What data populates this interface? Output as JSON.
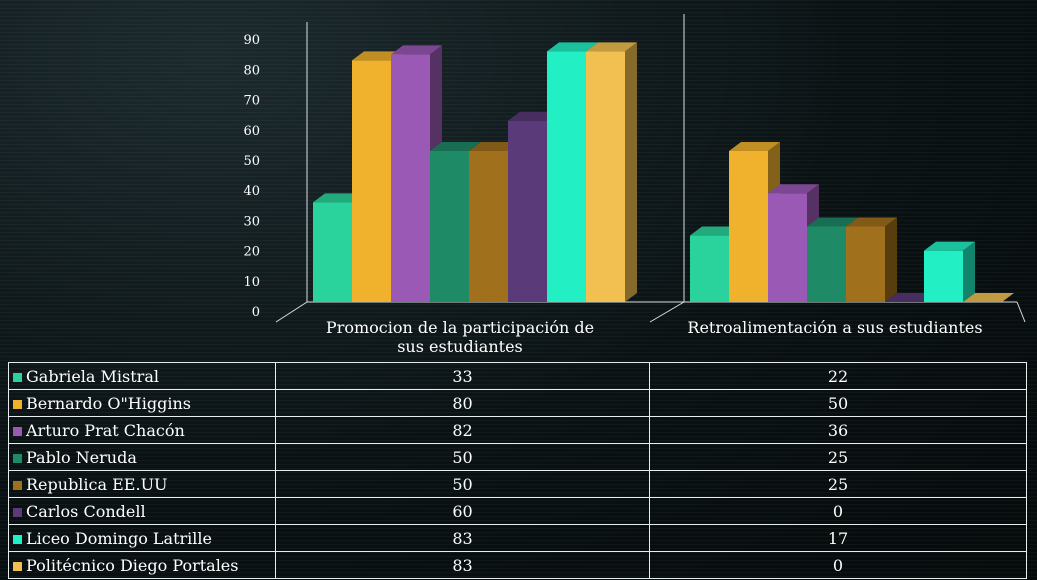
{
  "chart_data": {
    "type": "bar",
    "categories": [
      "Promocion de la participación de sus estudiantes",
      "Retroalimentación a sus estudiantes"
    ],
    "category_lines": [
      [
        "Promocion de la participación de",
        "sus estudiantes"
      ],
      [
        "Retroalimentación a sus estudiantes"
      ]
    ],
    "ylim": [
      0,
      90
    ],
    "yticks": [
      "0",
      "10",
      "20",
      "30",
      "40",
      "50",
      "60",
      "70",
      "80",
      "90"
    ],
    "series": [
      {
        "name": "Gabriela Mistral",
        "values": [
          33,
          22
        ],
        "color": "#2ad39b"
      },
      {
        "name": "Bernardo O\"Higgins",
        "values": [
          80,
          50
        ],
        "color": "#f0b12c"
      },
      {
        "name": "Arturo Prat Chacón",
        "values": [
          82,
          36
        ],
        "color": "#9b59b6"
      },
      {
        "name": "Pablo Neruda",
        "values": [
          50,
          25
        ],
        "color": "#1e8a66"
      },
      {
        "name": "Republica EE.UU",
        "values": [
          50,
          25
        ],
        "color": "#a0701c"
      },
      {
        "name": "Carlos Condell",
        "values": [
          60,
          0
        ],
        "color": "#5a3a78"
      },
      {
        "name": "Liceo Domingo Latrille",
        "values": [
          83,
          17
        ],
        "color": "#22f0c4"
      },
      {
        "name": "Politécnico Diego Portales",
        "values": [
          83,
          0
        ],
        "color": "#f2c050"
      }
    ]
  }
}
